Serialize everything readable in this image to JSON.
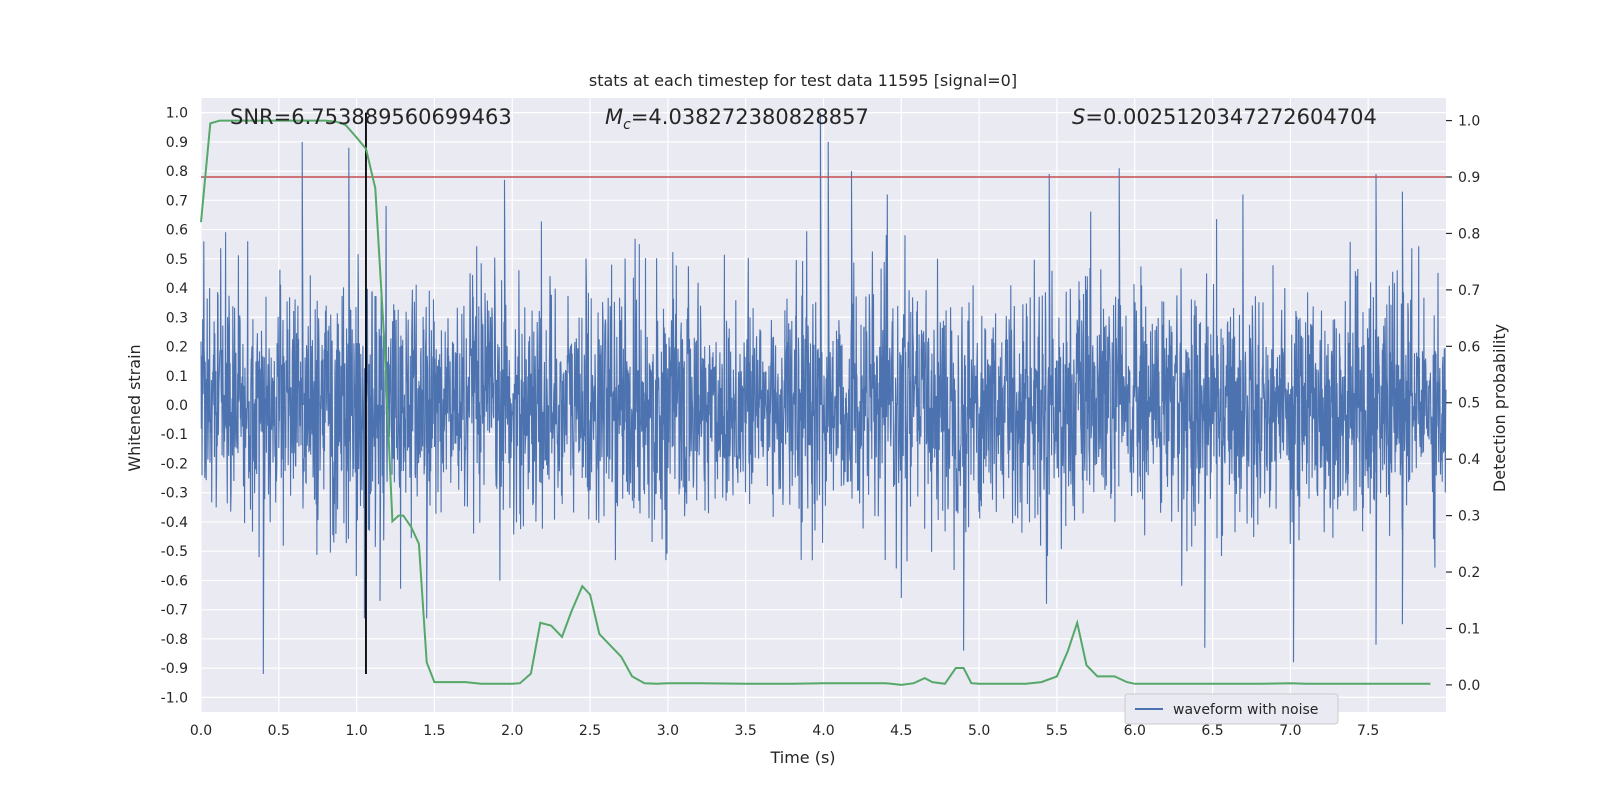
{
  "chart_data": {
    "type": "line",
    "title": "stats at each timestep for test data 11595 [signal=0]",
    "xlabel": "Time (s)",
    "ylabel": "Whitened strain",
    "y2label": "Detection probability",
    "xlim": [
      0,
      8
    ],
    "ylim": [
      -1.05,
      1.05
    ],
    "y2lim": [
      -0.048,
      1.04
    ],
    "xticks": [
      "0.0",
      "0.5",
      "1.0",
      "1.5",
      "2.0",
      "2.5",
      "3.0",
      "3.5",
      "4.0",
      "4.5",
      "5.0",
      "5.5",
      "6.0",
      "6.5",
      "7.0",
      "7.5"
    ],
    "yticks": [
      "-1.0",
      "-0.9",
      "-0.8",
      "-0.7",
      "-0.6",
      "-0.5",
      "-0.4",
      "-0.3",
      "-0.2",
      "-0.1",
      "0.0",
      "0.1",
      "0.2",
      "0.3",
      "0.4",
      "0.5",
      "0.6",
      "0.7",
      "0.8",
      "0.9",
      "1.0"
    ],
    "y2ticks": [
      "0.0",
      "0.1",
      "0.2",
      "0.3",
      "0.4",
      "0.5",
      "0.6",
      "0.7",
      "0.8",
      "0.9",
      "1.0"
    ],
    "grid": true,
    "legend": {
      "position": "lower-right",
      "entries": [
        "waveform with noise"
      ]
    },
    "annotations": {
      "snr": "SNR=6.753889560699463",
      "mc_symbol": "M",
      "mc_sub": "c",
      "mc_value": "=4.038272380828857",
      "s_symbol": "S",
      "s_value": "=0.0025120347272604704"
    },
    "threshold": {
      "axis": "y2",
      "value": 0.9,
      "color": "#c44e52"
    },
    "vline": {
      "x": 1.06,
      "ymin": -0.92,
      "ymax": 1.0,
      "color": "#000000"
    },
    "series": [
      {
        "name": "waveform with noise",
        "axis": "y",
        "color": "#4c72b0",
        "spikes": [
          [
            0.4,
            -0.92
          ],
          [
            0.65,
            0.9
          ],
          [
            0.95,
            0.88
          ],
          [
            1.05,
            -0.73
          ],
          [
            1.15,
            -0.67
          ],
          [
            1.45,
            -0.73
          ],
          [
            1.95,
            0.77
          ],
          [
            3.98,
            1.0
          ],
          [
            4.03,
            0.9
          ],
          [
            4.18,
            0.8
          ],
          [
            4.5,
            -0.66
          ],
          [
            4.9,
            -0.84
          ],
          [
            5.45,
            0.79
          ],
          [
            5.9,
            0.81
          ],
          [
            6.45,
            -0.83
          ],
          [
            7.02,
            -0.88
          ],
          [
            7.55,
            0.79
          ],
          [
            7.55,
            -0.82
          ],
          [
            7.72,
            0.73
          ],
          [
            7.72,
            -0.75
          ]
        ]
      },
      {
        "name": "",
        "axis": "y2",
        "color": "#55a868",
        "x": [
          0.0,
          0.06,
          0.12,
          0.2,
          0.3,
          0.4,
          0.5,
          0.6,
          0.7,
          0.8,
          0.87,
          0.93,
          1.0,
          1.06,
          1.12,
          1.18,
          1.23,
          1.27,
          1.3,
          1.35,
          1.4,
          1.45,
          1.5,
          1.6,
          1.7,
          1.8,
          1.9,
          2.0,
          2.05,
          2.12,
          2.18,
          2.25,
          2.32,
          2.38,
          2.45,
          2.5,
          2.56,
          2.63,
          2.7,
          2.77,
          2.85,
          2.93,
          3.0,
          3.2,
          3.5,
          3.8,
          4.0,
          4.2,
          4.4,
          4.5,
          4.58,
          4.65,
          4.7,
          4.78,
          4.85,
          4.9,
          4.95,
          5.0,
          5.1,
          5.2,
          5.3,
          5.4,
          5.5,
          5.57,
          5.63,
          5.69,
          5.76,
          5.87,
          5.95,
          6.0,
          6.2,
          6.5,
          6.8,
          7.0,
          7.1,
          7.5,
          7.9
        ],
        "y": [
          0.82,
          0.995,
          1.0,
          1.0,
          1.0,
          1.0,
          1.0,
          1.0,
          1.0,
          1.0,
          0.998,
          0.992,
          0.97,
          0.95,
          0.88,
          0.6,
          0.29,
          0.3,
          0.3,
          0.28,
          0.25,
          0.04,
          0.005,
          0.005,
          0.005,
          0.002,
          0.002,
          0.002,
          0.003,
          0.02,
          0.11,
          0.105,
          0.085,
          0.13,
          0.175,
          0.16,
          0.09,
          0.07,
          0.05,
          0.015,
          0.003,
          0.002,
          0.003,
          0.003,
          0.002,
          0.002,
          0.003,
          0.003,
          0.003,
          0.0,
          0.003,
          0.012,
          0.005,
          0.002,
          0.03,
          0.03,
          0.003,
          0.002,
          0.002,
          0.002,
          0.002,
          0.005,
          0.015,
          0.06,
          0.11,
          0.035,
          0.015,
          0.015,
          0.005,
          0.002,
          0.002,
          0.002,
          0.002,
          0.003,
          0.002,
          0.002,
          0.002
        ]
      }
    ]
  }
}
